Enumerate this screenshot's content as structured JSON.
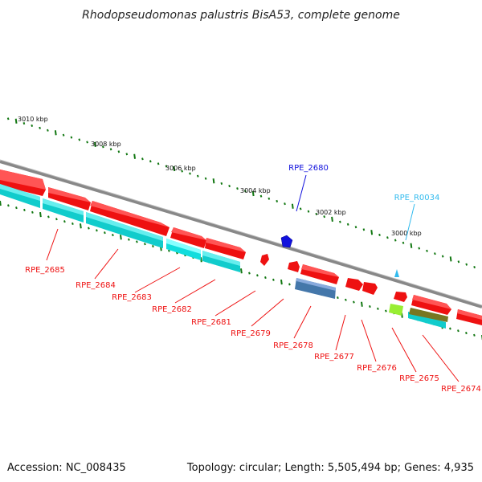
{
  "title": "Rhodopseudomonas palustris BisA53, complete genome",
  "footer": {
    "accession": "Accession: NC_008435",
    "topology": "Topology: circular; Length: 5,505,494 bp; Genes: 4,935"
  },
  "scale": [
    "3010 kbp",
    "3008 kbp",
    "3006 kbp",
    "3004 kbp",
    "3002 kbp",
    "3000 kbp"
  ],
  "genes": {
    "rpe2685": "RPE_2685",
    "rpe2684": "RPE_2684",
    "rpe2683": "RPE_2683",
    "rpe2682": "RPE_2682",
    "rpe2681": "RPE_2681",
    "rpe2680": "RPE_2680",
    "rpe2679": "RPE_2679",
    "rpe2678": "RPE_2678",
    "rpe2677": "RPE_2677",
    "rpe2676": "RPE_2676",
    "rpe2675": "RPE_2675",
    "rpe2674": "RPE_2674",
    "rper0034": "RPE_R0034"
  },
  "colors": {
    "cds": "#ee1111",
    "cds_dark": "#aa0000",
    "cds_light": "#ff6666",
    "mrna": "#11cccc",
    "blue_gene": "#1111dd",
    "rna_label": "#33bbee",
    "tick": "#117711",
    "steel": "#4477aa",
    "olive": "#777722",
    "lime": "#99ee33",
    "backbone": "#888888"
  }
}
